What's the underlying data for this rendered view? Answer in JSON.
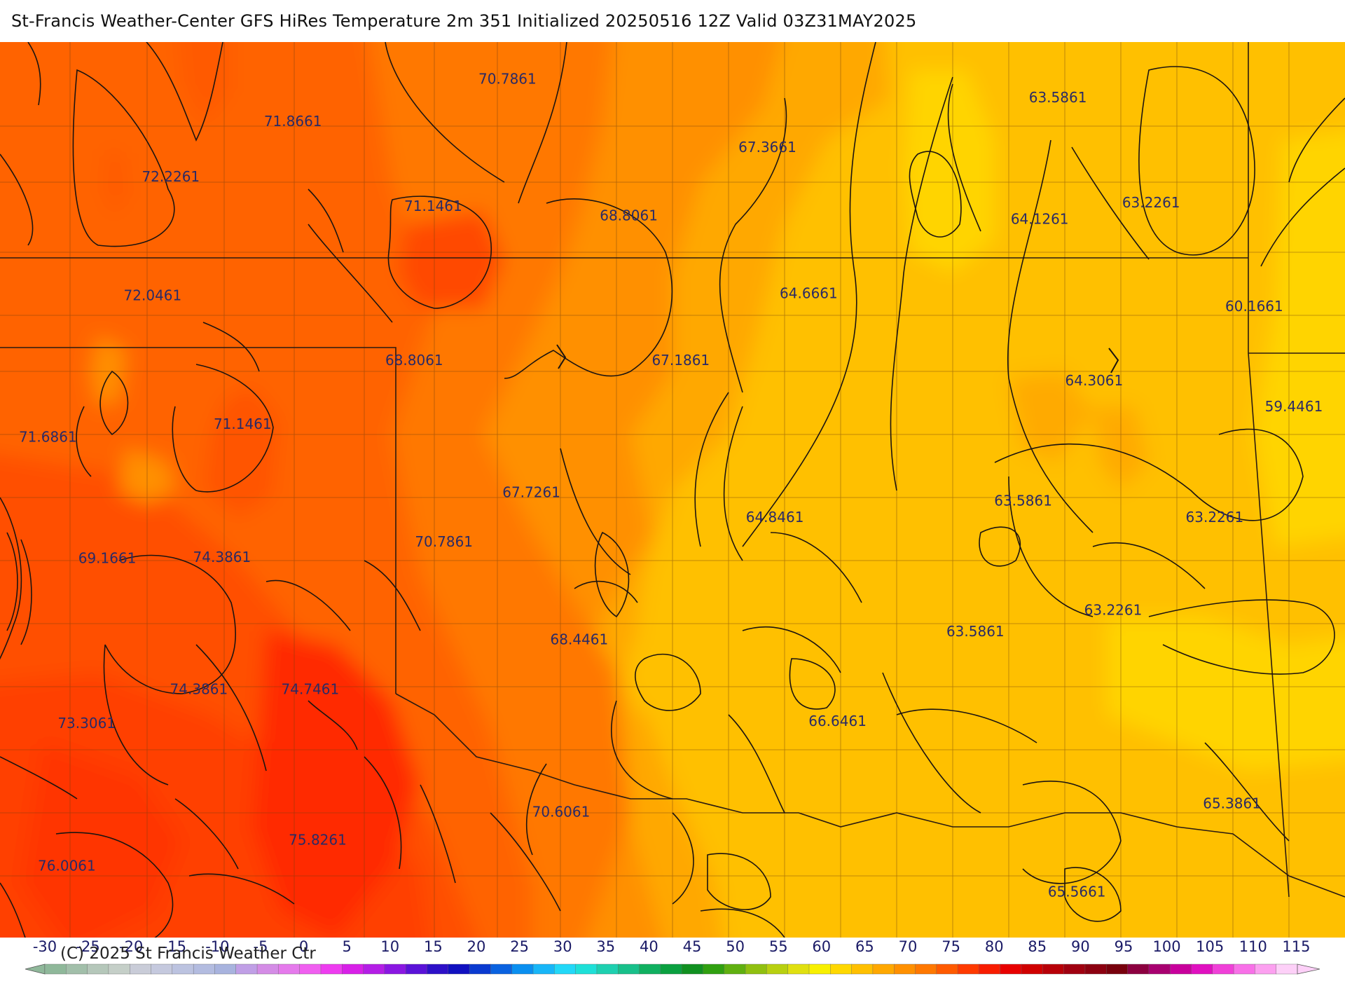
{
  "title": "St-Francis Weather-Center GFS HiRes Temperature 2m  351 Initialized 20250516 12Z Valid 03Z31MAY2025",
  "copyright": "(C) 2025 St Francis Weather Ctr",
  "field_labels": [
    {
      "text": "70.7861",
      "lon": -99.35,
      "lat": 39.18
    },
    {
      "text": "71.8661",
      "lon": -101.95,
      "lat": 38.82
    },
    {
      "text": "72.2261",
      "lon": -103.43,
      "lat": 38.35
    },
    {
      "text": "71.1461",
      "lon": -100.25,
      "lat": 38.1
    },
    {
      "text": "68.8061",
      "lon": -97.88,
      "lat": 38.02
    },
    {
      "text": "67.3661",
      "lon": -96.2,
      "lat": 38.6
    },
    {
      "text": "63.5861",
      "lon": -92.68,
      "lat": 39.02
    },
    {
      "text": "63.2261",
      "lon": -91.55,
      "lat": 38.13
    },
    {
      "text": "64.1261",
      "lon": -92.9,
      "lat": 37.99
    },
    {
      "text": "72.0461",
      "lon": -103.65,
      "lat": 37.34
    },
    {
      "text": "64.6661",
      "lon": -95.7,
      "lat": 37.36
    },
    {
      "text": "60.1661",
      "lon": -90.3,
      "lat": 37.25
    },
    {
      "text": "68.8061",
      "lon": -100.48,
      "lat": 36.79
    },
    {
      "text": "67.1861",
      "lon": -97.25,
      "lat": 36.79
    },
    {
      "text": "64.3061",
      "lon": -92.24,
      "lat": 36.62
    },
    {
      "text": "59.4461",
      "lon": -89.82,
      "lat": 36.4
    },
    {
      "text": "71.6861",
      "lon": -104.92,
      "lat": 36.14
    },
    {
      "text": "71.1461",
      "lon": -102.56,
      "lat": 36.25
    },
    {
      "text": "67.7261",
      "lon": -99.06,
      "lat": 35.67
    },
    {
      "text": "64.8461",
      "lon": -96.11,
      "lat": 35.46
    },
    {
      "text": "63.5861",
      "lon": -93.1,
      "lat": 35.6
    },
    {
      "text": "63.2261",
      "lon": -90.78,
      "lat": 35.46
    },
    {
      "text": "69.1661",
      "lon": -104.2,
      "lat": 35.11
    },
    {
      "text": "74.3861",
      "lon": -102.81,
      "lat": 35.12
    },
    {
      "text": "70.7861",
      "lon": -100.12,
      "lat": 35.25
    },
    {
      "text": "63.2261",
      "lon": -92.01,
      "lat": 34.67
    },
    {
      "text": "63.5861",
      "lon": -93.68,
      "lat": 34.49
    },
    {
      "text": "68.4461",
      "lon": -98.48,
      "lat": 34.42
    },
    {
      "text": "74.3861",
      "lon": -103.09,
      "lat": 34.0
    },
    {
      "text": "74.7461",
      "lon": -101.74,
      "lat": 34.0
    },
    {
      "text": "73.3061",
      "lon": -104.45,
      "lat": 33.71
    },
    {
      "text": "66.6461",
      "lon": -95.35,
      "lat": 33.73
    },
    {
      "text": "70.6061",
      "lon": -98.7,
      "lat": 32.96
    },
    {
      "text": "65.3861",
      "lon": -90.57,
      "lat": 33.03
    },
    {
      "text": "75.8261",
      "lon": -101.65,
      "lat": 32.72
    },
    {
      "text": "76.0061",
      "lon": -104.69,
      "lat": 32.5
    },
    {
      "text": "65.5661",
      "lon": -92.45,
      "lat": 32.28
    }
  ],
  "colorbar": {
    "ticks": [
      "-30",
      "-25",
      "-20",
      "-15",
      "-10",
      "-5",
      "0",
      "5",
      "10",
      "15",
      "20",
      "25",
      "30",
      "35",
      "40",
      "45",
      "50",
      "55",
      "60",
      "65",
      "70",
      "75",
      "80",
      "85",
      "90",
      "95",
      "100",
      "105",
      "110",
      "115"
    ],
    "colors": [
      "#8fb89a",
      "#a2bfaa",
      "#b5c7ba",
      "#c5cfc8",
      "#c9ccd8",
      "#c5c9de",
      "#bcc3e0",
      "#b3bce0",
      "#a8b3de",
      "#c09fe6",
      "#d48ce6",
      "#e57aec",
      "#f05ff0",
      "#ee3cf0",
      "#d820e8",
      "#b41ee6",
      "#8a17e2",
      "#5a12d8",
      "#2d10c8",
      "#1010c0",
      "#0a3ad0",
      "#0a62e0",
      "#0a8ff0",
      "#18b6f8",
      "#22d8f8",
      "#1ee0d8",
      "#1ed0b0",
      "#18c08a",
      "#10b060",
      "#0aa040",
      "#109020",
      "#30a010",
      "#60b010",
      "#90c010",
      "#b8d010",
      "#e0e010",
      "#f8f000",
      "#ffd800",
      "#ffc000",
      "#ffa800",
      "#ff9000",
      "#ff7800",
      "#ff5a00",
      "#ff3a00",
      "#f81c00",
      "#e80000",
      "#d00000",
      "#b80008",
      "#a00010",
      "#8c0010",
      "#78000c",
      "#8c0040",
      "#a80070",
      "#c8009c",
      "#e010c0",
      "#f040d8",
      "#f870e8",
      "#fca0f0",
      "#fdd0f8"
    ]
  },
  "temperature_legend_colors": {
    "cool": "#ffd000",
    "mid": "#ff9a00",
    "warm": "#ff3a00",
    "hot": "#ff2400"
  }
}
